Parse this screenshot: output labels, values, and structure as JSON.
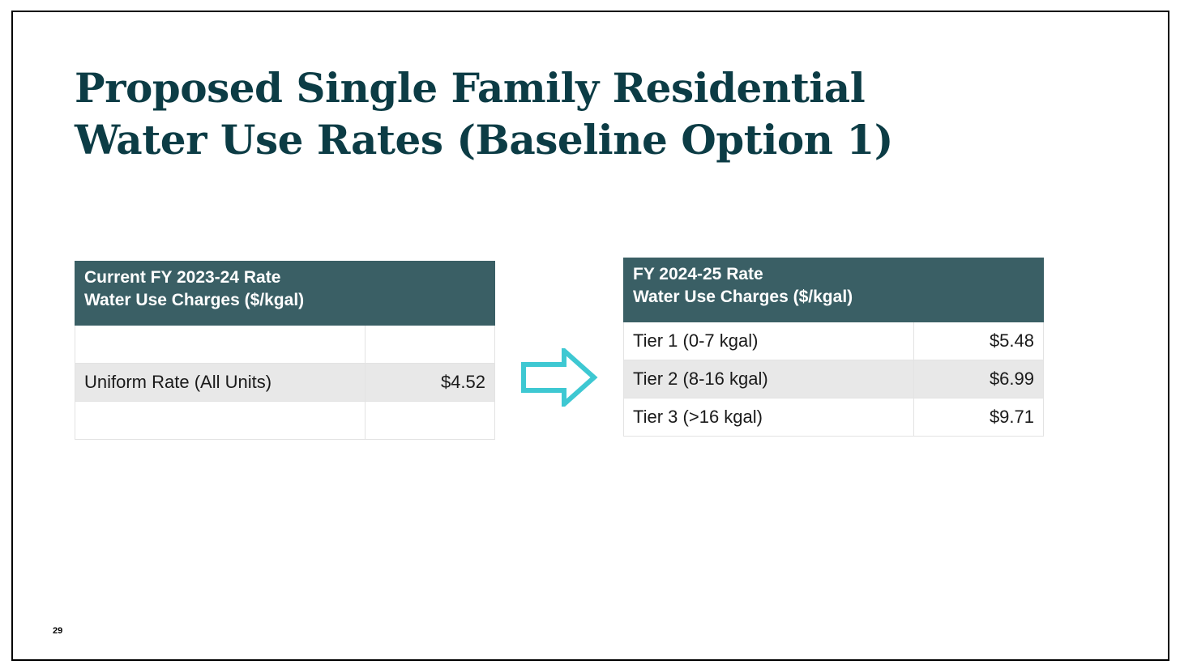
{
  "title": {
    "line1": "Proposed Single Family Residential",
    "line2": "Water Use Rates (Baseline Option 1)"
  },
  "current_table": {
    "header_line1": "Current FY 2023-24 Rate",
    "header_line2": "Water Use Charges ($/kgal)",
    "rows": [
      {
        "label": "",
        "value": ""
      },
      {
        "label": "Uniform Rate (All Units)",
        "value": "$4.52"
      },
      {
        "label": "",
        "value": ""
      }
    ]
  },
  "proposed_table": {
    "header_line1": "FY 2024-25 Rate",
    "header_line2": "Water Use Charges ($/kgal)",
    "rows": [
      {
        "label": "Tier 1 (0-7 kgal)",
        "value": "$5.48"
      },
      {
        "label": "Tier 2 (8-16 kgal)",
        "value": "$6.99"
      },
      {
        "label": "Tier 3 (>16 kgal)",
        "value": "$9.71"
      }
    ]
  },
  "arrow": {
    "icon": "right-arrow-icon",
    "color": "#3ec8d2"
  },
  "colors": {
    "title": "#0c3c45",
    "header_bg": "#3a5f65",
    "alt_row_bg": "#e8e8e8"
  },
  "page_number": "29"
}
